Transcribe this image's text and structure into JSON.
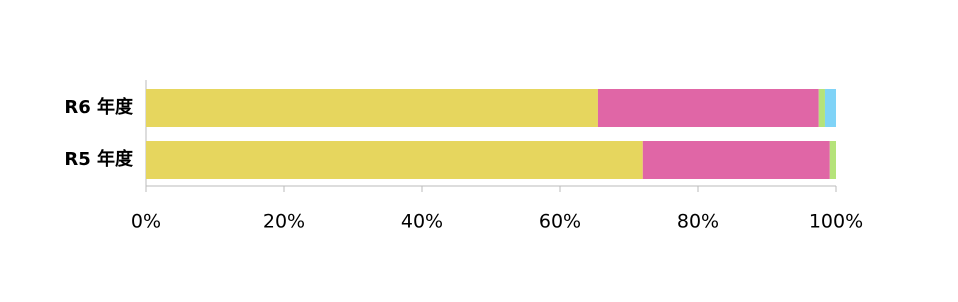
{
  "chart_data": {
    "type": "stacked-barh",
    "categories": [
      "R6 年度",
      "R5 年度"
    ],
    "series": [
      {
        "color": "#e6d65e",
        "values": [
          65.5,
          72.0
        ]
      },
      {
        "color": "#e066a6",
        "values": [
          32.0,
          27.1
        ]
      },
      {
        "color": "#b5e37a",
        "values": [
          0.9,
          0.9
        ]
      },
      {
        "color": "#7fd3f7",
        "values": [
          1.6,
          0
        ]
      }
    ],
    "xlim": [
      0,
      100
    ],
    "xticks": [
      {
        "value": 0,
        "label": "0%"
      },
      {
        "value": 20,
        "label": "20%"
      },
      {
        "value": 40,
        "label": "40%"
      },
      {
        "value": 60,
        "label": "60%"
      },
      {
        "value": 80,
        "label": "80%"
      },
      {
        "value": 100,
        "label": "100%"
      }
    ]
  }
}
